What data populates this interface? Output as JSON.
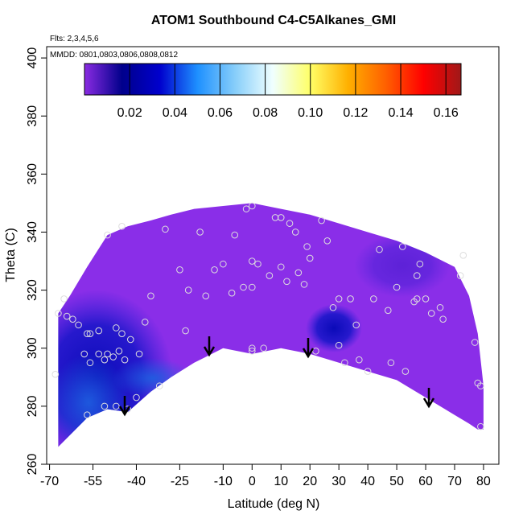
{
  "chart_data": {
    "type": "curtain",
    "title": "ATOM1 Southbound C4-C5Alkanes_GMI",
    "annotations": [
      "Flts: 2,3,4,5,6",
      "MMDD: 0801,0803,0806,0808,0812"
    ],
    "x_label": "Latitude (deg N)",
    "y_label": "Theta (C)",
    "xlim": [
      -71,
      85.3
    ],
    "ylim": [
      260,
      403.9
    ],
    "xticks": [
      -70,
      -55,
      -40,
      -25,
      -10,
      0,
      10,
      20,
      30,
      40,
      50,
      60,
      70,
      80
    ],
    "yticks": [
      260,
      280,
      300,
      320,
      340,
      360,
      380,
      400
    ],
    "region": {
      "color": "#8a2ee8",
      "x": [
        -67,
        -63,
        -57,
        -50,
        -43,
        -35,
        -28,
        -20,
        -10,
        0,
        10,
        20,
        30,
        40,
        50,
        60,
        70,
        75,
        78,
        80
      ],
      "upper": [
        312,
        318,
        328,
        339,
        342,
        344,
        346,
        348,
        349,
        350,
        348,
        346,
        343,
        340,
        337,
        333,
        328,
        318,
        305,
        287
      ],
      "lower": [
        266,
        270,
        276,
        279,
        278,
        285,
        290,
        295,
        300,
        298,
        300,
        298,
        295,
        292,
        289,
        283,
        277,
        274,
        272,
        272
      ]
    },
    "points": {
      "color": "#dddddd",
      "x": [
        -68,
        -67,
        -65,
        -64,
        -62,
        -60,
        -57,
        -56,
        -53,
        -58,
        -56,
        -53,
        -51,
        -50,
        -48,
        -46,
        -45,
        -47,
        -44,
        -42,
        -39,
        -37,
        -35,
        -32,
        -40,
        -43,
        -47,
        -51,
        -57,
        -50,
        -45,
        -30,
        -25,
        -23,
        -22,
        -18,
        -16,
        -13,
        -10,
        -7,
        -6,
        -3,
        0,
        0,
        0,
        0,
        0,
        2,
        4,
        6,
        8,
        10,
        12,
        13,
        15,
        16,
        18,
        19,
        20,
        22,
        24,
        26,
        28,
        30,
        30,
        32,
        34,
        36,
        37,
        40,
        42,
        44,
        47,
        48,
        50,
        52,
        53,
        56,
        57,
        60,
        58,
        57,
        62,
        65,
        66,
        72,
        73,
        77,
        78,
        79,
        79,
        10,
        -2
      ],
      "y": [
        291,
        312,
        317,
        311,
        310,
        308,
        305,
        305,
        306,
        298,
        295,
        298,
        296,
        298,
        297,
        299,
        305,
        307,
        296,
        303,
        298,
        309,
        318,
        287,
        283,
        279,
        280,
        280,
        277,
        339,
        342,
        341,
        327,
        306,
        320,
        340,
        318,
        327,
        329,
        319,
        339,
        321,
        330,
        321,
        349,
        300,
        299,
        329,
        300,
        325,
        345,
        328,
        323,
        343,
        340,
        326,
        322,
        335,
        331,
        299,
        344,
        337,
        314,
        301,
        317,
        295,
        317,
        308,
        296,
        292,
        317,
        334,
        313,
        295,
        321,
        335,
        292,
        316,
        317,
        317,
        329,
        325,
        312,
        314,
        310,
        325,
        332,
        302,
        288,
        287,
        273,
        345,
        348
      ]
    },
    "colorbar": {
      "clim": [
        0,
        0.1667
      ],
      "colors": [
        "#8a2be2",
        "#00008b",
        "#0000cd",
        "#1e90ff",
        "#87cefa",
        "#f0ffff",
        "#ffff66",
        "#ffb000",
        "#ff6000",
        "#ff0000",
        "#a01818"
      ],
      "ticks": [
        0.02,
        0.04,
        0.06,
        0.08,
        {
          "value": 0.1,
          "label": "0.10"
        },
        0.12,
        0.14,
        0.16
      ]
    }
  }
}
